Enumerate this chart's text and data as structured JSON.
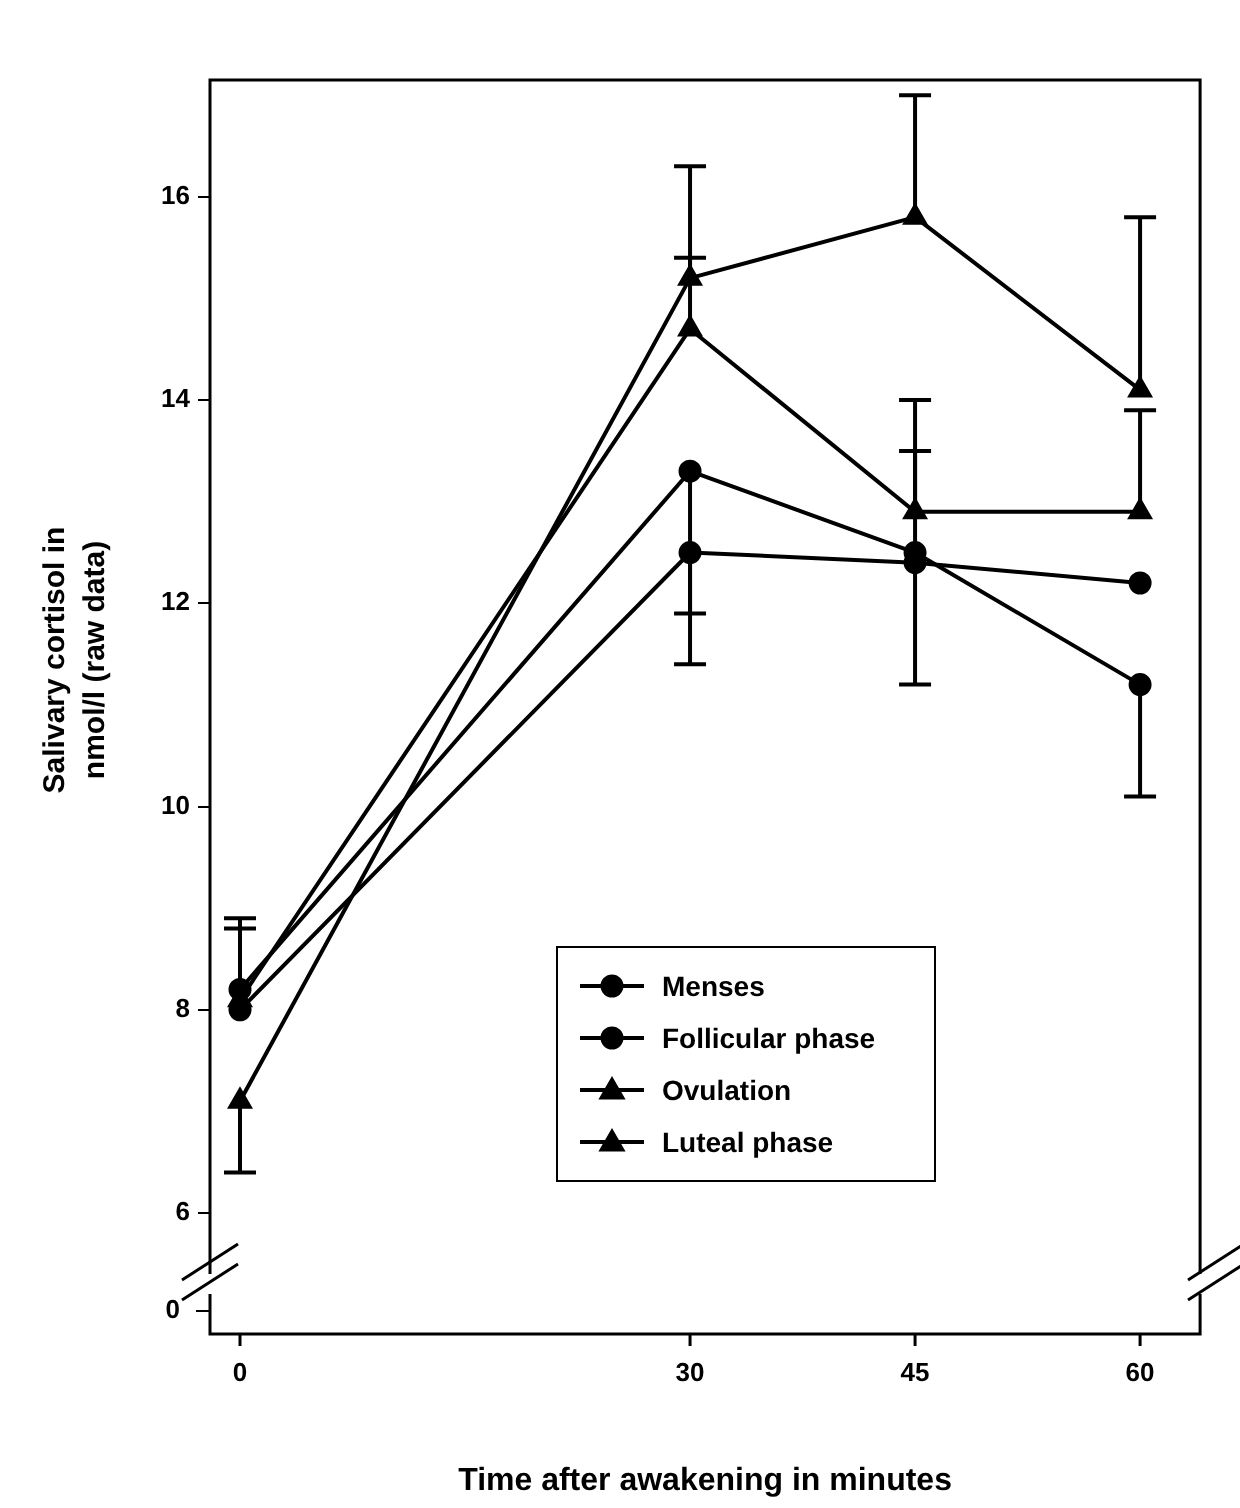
{
  "chart_data": {
    "type": "line",
    "xlabel": "Time after awakening in minutes",
    "ylabel": "Salivary cortisol in nmol/l (raw data)",
    "annotations": [
      "0"
    ],
    "x": [
      0,
      30,
      45,
      60
    ],
    "xlim": [
      -2,
      64
    ],
    "xticks": [
      0,
      30,
      45,
      60
    ],
    "ylim": [
      5.4,
      17.15
    ],
    "yticks": [
      6,
      8,
      10,
      12,
      14,
      16
    ],
    "grid": false,
    "legend": "bottom right",
    "line_style": "solid",
    "series": [
      {
        "name": "Menses",
        "color": "#000000",
        "marker": "circle",
        "values": [
          8.2,
          13.3,
          12.5,
          11.2
        ],
        "errors": [
          [
            8.2,
            8.9
          ],
          [
            11.9,
            13.3
          ],
          [
            12.5,
            13.5
          ],
          [
            10.1,
            11.2
          ]
        ]
      },
      {
        "name": "Follicular phase",
        "color": "#000000",
        "marker": "circle",
        "values": [
          8.0,
          12.5,
          12.4,
          12.2
        ],
        "errors": [
          [
            8.0,
            8.8
          ],
          [
            11.4,
            12.5
          ],
          [
            11.2,
            12.4
          ],
          null
        ]
      },
      {
        "name": "Ovulation",
        "color": "#000000",
        "marker": "triangle",
        "values": [
          7.1,
          15.2,
          15.8,
          14.1
        ],
        "errors": [
          [
            6.4,
            7.1
          ],
          [
            15.2,
            16.3
          ],
          [
            15.8,
            17.0
          ],
          [
            14.1,
            15.8
          ]
        ]
      },
      {
        "name": "Luteal phase",
        "color": "#000000",
        "marker": "triangle",
        "values": [
          8.1,
          14.7,
          12.9,
          12.9
        ],
        "errors": [
          null,
          [
            14.7,
            15.4
          ],
          [
            12.9,
            14.0
          ],
          [
            12.9,
            13.9
          ]
        ]
      }
    ]
  }
}
